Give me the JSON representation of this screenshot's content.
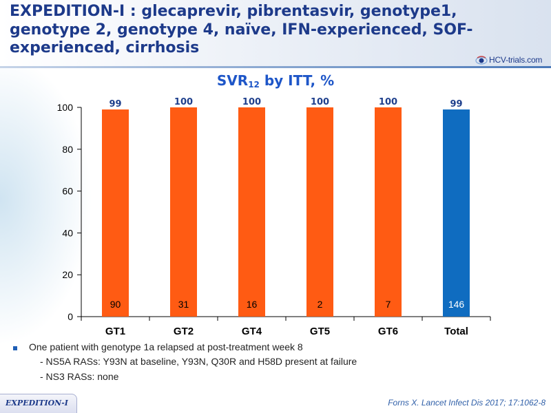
{
  "header": {
    "title": "EXPEDITION-I : glecaprevir, pibrentasvir, genotype1, genotype 2, genotype 4,  naïve, IFN-experienced, SOF-experienced, cirrhosis",
    "logo_text": "HCV-trials.com"
  },
  "chart_data": {
    "type": "bar",
    "title_main": "SVR",
    "title_sub": "12",
    "title_rest": " by ITT, %",
    "categories": [
      "GT1",
      "GT2",
      "GT4",
      "GT5",
      "GT6",
      "Total"
    ],
    "values": [
      99,
      100,
      100,
      100,
      100,
      99
    ],
    "n_labels": [
      "90",
      "31",
      "16",
      "2",
      "7",
      "146"
    ],
    "bar_colors": [
      "#ff5b13",
      "#ff5b13",
      "#ff5b13",
      "#ff5b13",
      "#ff5b13",
      "#0f6cc0"
    ],
    "ylim": [
      0,
      100
    ],
    "yticks": [
      0,
      20,
      40,
      60,
      80,
      100
    ],
    "grid": false
  },
  "footer": {
    "bullet": "One patient with genotype 1a relapsed at post-treatment week 8",
    "sub1": "- NS5A RASs: Y93N at baseline, Y93N, Q30R and H58D present at failure",
    "sub2": "- NS3 RASs: none",
    "tab_label": "EXPEDITION-I",
    "citation": "Forns X. Lancet Infect Dis 2017; 17:1062-8"
  },
  "colors": {
    "title": "#1d3a8a",
    "value_label": "#1e3f8c",
    "chart_title": "#1e56c8"
  }
}
